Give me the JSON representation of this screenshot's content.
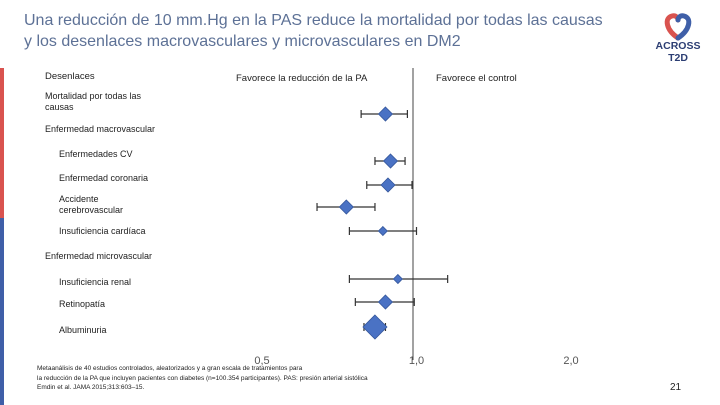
{
  "title": "Una reducción de 10 mm.Hg en la PAS reduce la mortalidad por todas las causas y los desenlaces macrovasculares y microvasculares en DM2",
  "logo": {
    "text_line1": "ACROSS",
    "text_line2": "T2D"
  },
  "header": {
    "col_label": "Desenlaces",
    "favors_left": "Favorece la reducción de la PA",
    "favors_right": "Favorece el control"
  },
  "outcomes": [
    {
      "label": "Mortalidad por todas las causas",
      "indent": false
    },
    {
      "label": "Enfermedad macrovascular",
      "indent": false
    },
    {
      "label": "Enfermedades CV",
      "indent": true
    },
    {
      "label": "Enfermedad coronaria",
      "indent": true
    },
    {
      "label": "Accidente cerebrovascular",
      "indent": true
    },
    {
      "label": "Insuficiencia cardíaca",
      "indent": true
    },
    {
      "label": "Enfermedad microvascular",
      "indent": false
    },
    {
      "label": "Insuficiencia renal",
      "indent": true
    },
    {
      "label": "Retinopatía",
      "indent": true
    },
    {
      "label": "Albuminuria",
      "indent": true
    }
  ],
  "chart_data": {
    "type": "forest",
    "scale": "log",
    "xlim": [
      0.5,
      2.0
    ],
    "reference_line": 1.0,
    "x_ticks": [
      "0,5",
      "1,0",
      "2,0"
    ],
    "points": [
      {
        "outcome": "Mortalidad por todas las causas",
        "estimate": 0.87,
        "ci": [
          0.78,
          0.96
        ],
        "weight": "medium"
      },
      {
        "outcome": "Enfermedades CV",
        "estimate": 0.89,
        "ci": [
          0.83,
          0.95
        ],
        "weight": "medium"
      },
      {
        "outcome": "Enfermedad coronaria",
        "estimate": 0.88,
        "ci": [
          0.8,
          0.98
        ],
        "weight": "medium"
      },
      {
        "outcome": "Accidente cerebrovascular",
        "estimate": 0.73,
        "ci": [
          0.64,
          0.83
        ],
        "weight": "medium"
      },
      {
        "outcome": "Insuficiencia cardíaca",
        "estimate": 0.86,
        "ci": [
          0.74,
          1.0
        ],
        "weight": "small"
      },
      {
        "outcome": "Insuficiencia renal",
        "estimate": 0.92,
        "ci": [
          0.74,
          1.15
        ],
        "weight": "small"
      },
      {
        "outcome": "Retinopatía",
        "estimate": 0.87,
        "ci": [
          0.76,
          0.99
        ],
        "weight": "medium"
      },
      {
        "outcome": "Albuminuria",
        "estimate": 0.83,
        "ci": [
          0.79,
          0.87
        ],
        "weight": "large"
      }
    ]
  },
  "footnote": {
    "line1": "Metaanálisis de 40 estudios controlados, aleatorizados y a gran escala de tratamientos para",
    "line2": "la reducción de la PA que incluyen pacientes con diabetes (n=100.354 participantes). PAS: presión arterial sistólica",
    "line3": "Emdin et al. JAMA 2015;313:603–15."
  },
  "page_number": "21",
  "colors": {
    "title": "#5d7196",
    "marker": "#4a72c4",
    "marker_stroke": "#34569a",
    "whisker": "#333333",
    "sidebar_red": "#d9534f",
    "sidebar_blue": "#3f5fa8"
  }
}
